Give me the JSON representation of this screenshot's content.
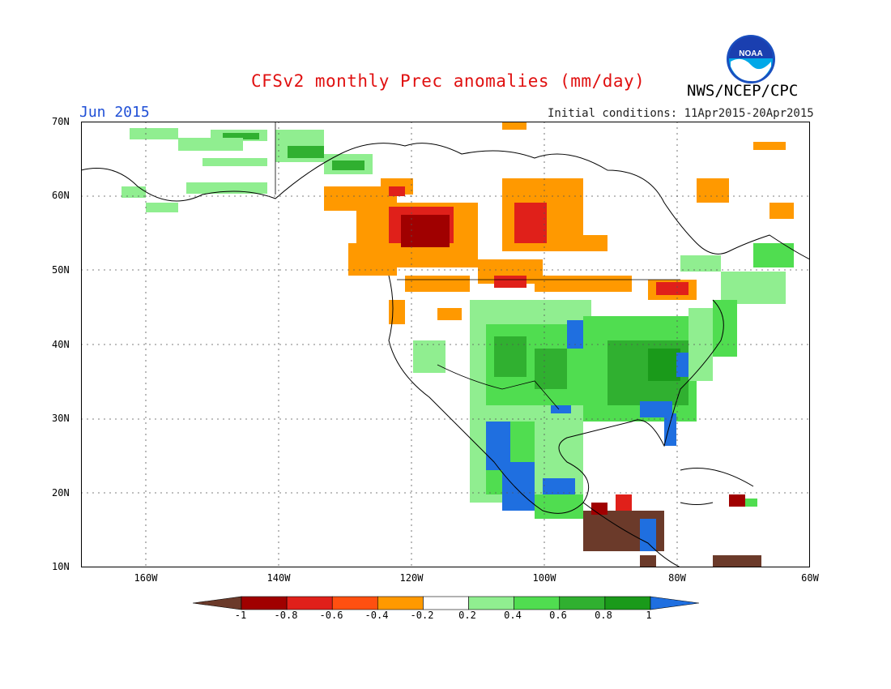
{
  "header": {
    "title": "CFSv2 monthly Prec anomalies (mm/day)",
    "agency": "NWS/NCEP/CPC",
    "month": "Jun 2015",
    "initial_conditions": "Initial conditions: 11Apr2015-20Apr2015",
    "logo_text": "NOAA"
  },
  "axes": {
    "lat_labels": [
      "70N",
      "60N",
      "50N",
      "40N",
      "30N",
      "20N",
      "10N"
    ],
    "lon_labels": [
      "160W",
      "140W",
      "120W",
      "100W",
      "80W",
      "60W"
    ]
  },
  "colorbar": {
    "labels": [
      "-1",
      "-0.8",
      "-0.6",
      "-0.4",
      "-0.2",
      "0.2",
      "0.4",
      "0.6",
      "0.8",
      "1"
    ],
    "colors": [
      "#6b3a2a",
      "#a00000",
      "#e0201a",
      "#ff5010",
      "#ff9900",
      "#ffffff",
      "#90ee90",
      "#50dd50",
      "#30b030",
      "#1a9a1a",
      "#1f6fe0"
    ]
  }
}
